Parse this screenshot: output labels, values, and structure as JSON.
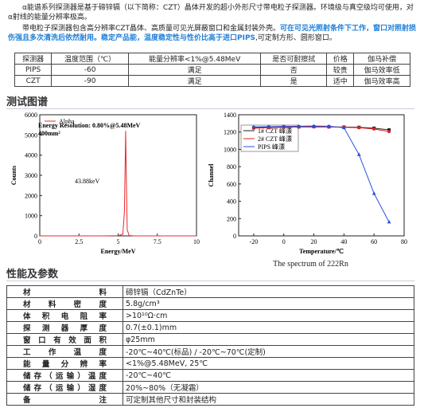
{
  "intro": {
    "p1": "α能谱系列探测器是基于碲锌镉（以下简称：CZT）晶体开发的超小外形尺寸带电粒子探测器。环境级与真空级均可使用，对α射线的能量分辨率极高。",
    "p2_start": "带电粒子探测器包含高分辨率CZT晶体、高质量可见光屏蔽窗口和金属封装外壳。",
    "p2_highlight": "可在可见光照射条件下工作，窗口对照射损伤强且多次清洗后依然耐用。稳定产品能，温度稳定性与性价比高于进口PIPS",
    "p2_end": ",可定制方形、圆形窗口。"
  },
  "table1": {
    "header": [
      "探测器",
      "温度范围（℃）",
      "能量分辨率<1%@5.48MeV",
      "是否可耐擦拭",
      "价格",
      "伽马补偿"
    ],
    "rows": [
      [
        "PIPS",
        "-60",
        "满足",
        "否",
        "较贵",
        "伽马效率低"
      ],
      [
        "CZT",
        "-90",
        "满足",
        "是",
        "适中",
        "伽马效率高"
      ]
    ]
  },
  "section1": "测试图谱",
  "chart_data": [
    {
      "type": "line",
      "x_label": "Energy/MeV",
      "y_label": "Counts",
      "x": [
        0,
        1,
        2,
        3,
        4,
        5,
        5.3,
        5.4,
        5.45,
        5.48,
        5.52,
        5.58,
        5.7,
        6,
        7,
        8,
        9,
        10
      ],
      "series": [
        {
          "name": "Alpha",
          "color": "#e8282a",
          "values": [
            0,
            0,
            0,
            0,
            0,
            10,
            80,
            1200,
            3600,
            5200,
            3000,
            300,
            20,
            0,
            0,
            0,
            0,
            0
          ]
        }
      ],
      "xlim": [
        0,
        10
      ],
      "xticks": [
        0,
        2.5,
        5,
        7.5,
        10
      ],
      "ylim": [
        0,
        6000
      ],
      "yticks": [
        0,
        1000,
        2000,
        3000,
        4000,
        5000,
        6000
      ],
      "annotations": [
        "Energy Resolution: 0.80%@5.48MeV",
        "400mm²",
        "43.88keV"
      ],
      "legend": "upper left"
    },
    {
      "type": "line",
      "x_label": "Temperature/℃",
      "y_label": "Channel",
      "x": [
        -20,
        -10,
        0,
        10,
        20,
        30,
        40,
        50,
        60,
        70
      ],
      "series": [
        {
          "name": "1# CZT 峰漂",
          "color": "#222222",
          "marker": "square",
          "values": [
            1250,
            1255,
            1258,
            1260,
            1262,
            1260,
            1258,
            1255,
            1245,
            1225
          ]
        },
        {
          "name": "2# CZT 峰漂",
          "color": "#e02020",
          "marker": "circle",
          "values": [
            1245,
            1250,
            1255,
            1258,
            1260,
            1258,
            1255,
            1250,
            1235,
            1205
          ]
        },
        {
          "name": "PIPS 峰漂",
          "color": "#2a4fe0",
          "marker": "triangle",
          "values": [
            1260,
            1262,
            1265,
            1268,
            1270,
            1268,
            1250,
            940,
            490,
            160
          ]
        }
      ],
      "xlim": [
        -30,
        80
      ],
      "xticks": [
        -20,
        0,
        20,
        40,
        60,
        80
      ],
      "ylim": [
        0,
        1400
      ],
      "yticks": [
        0,
        200,
        400,
        600,
        800,
        1000,
        1200,
        1400
      ],
      "legend": "center left"
    }
  ],
  "caption": "The spectrum of 222Rn",
  "section2": "性能及参数",
  "specs": {
    "rows": [
      [
        "材料",
        "碲锌镉（CdZnTe）"
      ],
      [
        "材料密度",
        "5.8g/cm³"
      ],
      [
        "体积电阻率",
        ">10¹⁰Ω·cm"
      ],
      [
        "探测器厚度",
        "0.7(±0.1)mm"
      ],
      [
        "窗口有效面积",
        "φ25mm"
      ],
      [
        "工作温度",
        "-20℃~40℃(标品) / -20℃~70℃(定制)"
      ],
      [
        "能量分辨率",
        "<1%@5.48MeV, 25℃"
      ],
      [
        "储存（运输）温度",
        "-20℃~40℃"
      ],
      [
        "储存（运输）湿度",
        "20%~80%（无凝霜）"
      ],
      [
        "备注",
        "可定制其他尺寸和封装结构"
      ]
    ]
  }
}
